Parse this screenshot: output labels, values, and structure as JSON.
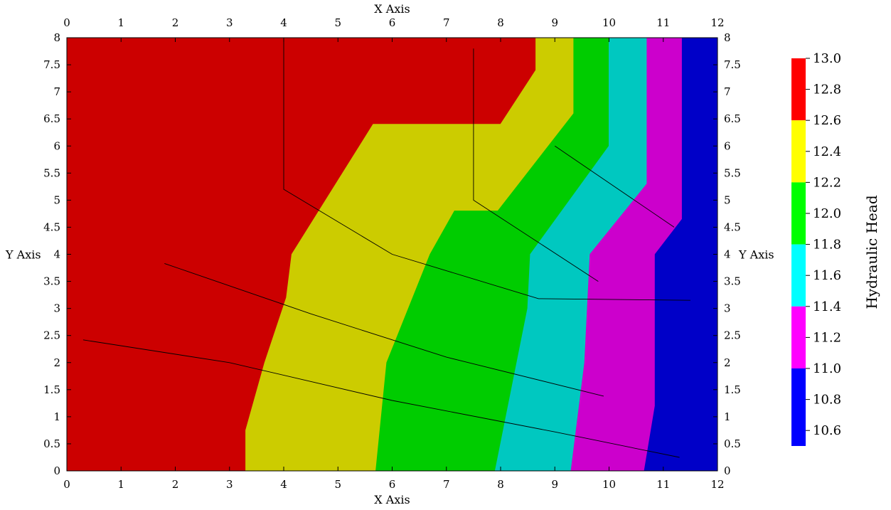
{
  "chart_data": {
    "type": "contour",
    "x_axis": {
      "label": "X Axis",
      "range": [
        0,
        12
      ],
      "ticks": [
        0,
        1,
        2,
        3,
        4,
        5,
        6,
        7,
        8,
        9,
        10,
        11,
        12
      ]
    },
    "y_axis": {
      "label": "Y Axis",
      "range": [
        0,
        8
      ],
      "ticks": [
        0,
        0.5,
        1,
        1.5,
        2,
        2.5,
        3,
        3.5,
        4,
        4.5,
        5,
        5.5,
        6,
        6.5,
        7,
        7.5,
        8
      ]
    },
    "colorbar": {
      "title": "Hydraulic Head",
      "range": [
        10.5,
        13.0
      ],
      "labels": [
        "13.0",
        "12.8",
        "12.6",
        "12.4",
        "12.2",
        "12.0",
        "11.8",
        "11.6",
        "11.4",
        "11.2",
        "11.0",
        "10.8",
        "10.6"
      ],
      "label_values": [
        13.0,
        12.8,
        12.6,
        12.4,
        12.2,
        12.0,
        11.8,
        11.6,
        11.4,
        11.2,
        11.0,
        10.8,
        10.6
      ],
      "bands": [
        {
          "range": [
            12.6,
            13.0
          ],
          "color": "#ff0000"
        },
        {
          "range": [
            12.2,
            12.6
          ],
          "color": "#ffff00"
        },
        {
          "range": [
            11.8,
            12.2
          ],
          "color": "#00ff00"
        },
        {
          "range": [
            11.4,
            11.8
          ],
          "color": "#00ffff"
        },
        {
          "range": [
            11.0,
            11.4
          ],
          "color": "#ff00ff"
        },
        {
          "range": [
            10.5,
            11.0
          ],
          "color": "#0000ff"
        }
      ]
    },
    "regions": [
      {
        "name": "red-zone",
        "color": "#cc0000",
        "points": [
          [
            0,
            0
          ],
          [
            3.3,
            0
          ],
          [
            3.3,
            0.75
          ],
          [
            3.65,
            2.0
          ],
          [
            4.05,
            3.2
          ],
          [
            4.15,
            4.0
          ],
          [
            5.65,
            6.4
          ],
          [
            8.0,
            6.4
          ],
          [
            8.65,
            7.4
          ],
          [
            8.65,
            8.0
          ],
          [
            0,
            8.0
          ]
        ]
      },
      {
        "name": "yellow-zone",
        "color": "#cccc00",
        "points": [
          [
            3.3,
            0
          ],
          [
            5.7,
            0
          ],
          [
            5.9,
            2.0
          ],
          [
            6.7,
            4.0
          ],
          [
            7.15,
            4.8
          ],
          [
            7.95,
            4.8
          ],
          [
            9.35,
            6.6
          ],
          [
            9.35,
            8.0
          ],
          [
            8.65,
            8.0
          ],
          [
            8.65,
            7.4
          ],
          [
            8.0,
            6.4
          ],
          [
            5.65,
            6.4
          ],
          [
            4.15,
            4.0
          ],
          [
            4.05,
            3.2
          ],
          [
            3.65,
            2.0
          ],
          [
            3.3,
            0.75
          ]
        ]
      },
      {
        "name": "green-zone",
        "color": "#00cc00",
        "points": [
          [
            5.7,
            0
          ],
          [
            7.9,
            0
          ],
          [
            8.5,
            3.0
          ],
          [
            8.55,
            4.0
          ],
          [
            10.0,
            6.0
          ],
          [
            10.0,
            8.0
          ],
          [
            9.35,
            8.0
          ],
          [
            9.35,
            6.6
          ],
          [
            7.95,
            4.8
          ],
          [
            7.15,
            4.8
          ],
          [
            6.7,
            4.0
          ],
          [
            5.9,
            2.0
          ]
        ]
      },
      {
        "name": "cyan-zone",
        "color": "#00c8c0",
        "points": [
          [
            7.9,
            0
          ],
          [
            9.3,
            0
          ],
          [
            9.55,
            2.0
          ],
          [
            9.65,
            4.0
          ],
          [
            10.7,
            5.3
          ],
          [
            10.7,
            8.0
          ],
          [
            10.0,
            8.0
          ],
          [
            10.0,
            6.0
          ],
          [
            8.55,
            4.0
          ],
          [
            8.5,
            3.0
          ]
        ]
      },
      {
        "name": "magenta-zone",
        "color": "#cc00cc",
        "points": [
          [
            9.3,
            0
          ],
          [
            10.65,
            0
          ],
          [
            10.85,
            1.2
          ],
          [
            10.85,
            4.0
          ],
          [
            11.35,
            4.65
          ],
          [
            11.35,
            8.0
          ],
          [
            10.7,
            8.0
          ],
          [
            10.7,
            5.3
          ],
          [
            9.65,
            4.0
          ],
          [
            9.55,
            2.0
          ]
        ]
      },
      {
        "name": "blue-zone",
        "color": "#0000c8",
        "points": [
          [
            10.65,
            0
          ],
          [
            12,
            0
          ],
          [
            12,
            8
          ],
          [
            11.35,
            8.0
          ],
          [
            11.35,
            4.65
          ],
          [
            10.85,
            4.0
          ],
          [
            10.85,
            1.2
          ]
        ]
      }
    ],
    "pathlines": [
      {
        "name": "pathline-1",
        "points": [
          [
            0.3,
            2.42
          ],
          [
            3.0,
            2.0
          ],
          [
            6.0,
            1.3
          ],
          [
            9.0,
            0.72
          ],
          [
            11.3,
            0.25
          ]
        ]
      },
      {
        "name": "pathline-2",
        "points": [
          [
            1.8,
            3.83
          ],
          [
            4.5,
            2.9
          ],
          [
            7.0,
            2.1
          ],
          [
            9.9,
            1.38
          ]
        ]
      },
      {
        "name": "pathline-3",
        "points": [
          [
            4.0,
            8.0
          ],
          [
            4.0,
            5.2
          ],
          [
            6.0,
            4.0
          ],
          [
            8.7,
            3.18
          ],
          [
            11.5,
            3.15
          ]
        ]
      },
      {
        "name": "pathline-4",
        "points": [
          [
            7.5,
            7.8
          ],
          [
            7.5,
            5.0
          ],
          [
            9.8,
            3.5
          ]
        ]
      },
      {
        "name": "pathline-5",
        "points": [
          [
            9.0,
            6.0
          ],
          [
            11.2,
            4.5
          ]
        ]
      }
    ]
  }
}
